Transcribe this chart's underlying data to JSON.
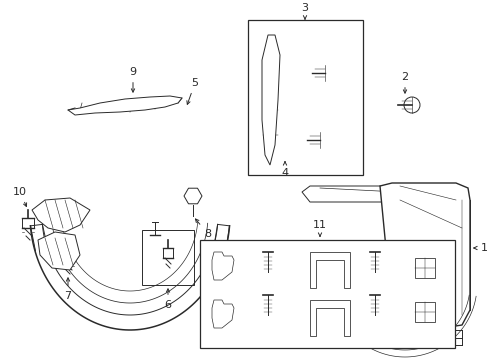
{
  "bg_color": "#ffffff",
  "line_color": "#2a2a2a",
  "figsize": [
    4.89,
    3.6
  ],
  "dpi": 100
}
